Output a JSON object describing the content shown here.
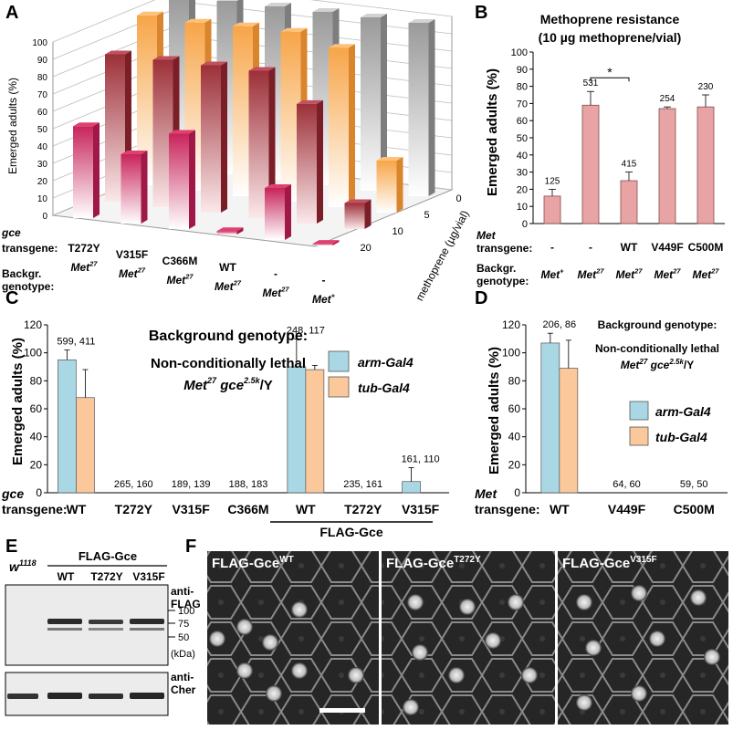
{
  "panel_letters": [
    "A",
    "B",
    "C",
    "D",
    "E",
    "F"
  ],
  "panel_a": {
    "ylabel": "Emerged adults (%)",
    "depth_label": "methoprene (µg/vial)",
    "row1_header": "gce transgene:",
    "row2_header": "Backgr. genotype:",
    "gce_transgene": [
      "T272Y",
      "V315F",
      "C366M",
      "WT",
      "-",
      "-"
    ],
    "background": [
      "Met27",
      "Met27",
      "Met27",
      "Met27",
      "Met27",
      "Met+"
    ]
  },
  "panel_b": {
    "title": "Methoprene resistance",
    "subtitle": "(10 µg methoprene/vial)",
    "row1_header": "Met transgene:",
    "row2_header": "Backgr. genotype:",
    "star": "*"
  },
  "panel_c": {
    "box_title": "Background genotype:",
    "box_line1": "Non-conditionally lethal",
    "box_line2": "Met27 gce2.5k/Y",
    "row_header": "gce transgene:",
    "group_label": "FLAG-Gce"
  },
  "panel_d": {
    "box_title": "Background genotype:",
    "box_line1": "Non-conditionally lethal",
    "box_line2": "Met27 gce2.5k/Y",
    "row_header": "Met transgene:"
  },
  "panel_e": {
    "control_lane": "w1118",
    "group_label": "FLAG-Gce",
    "lanes": [
      "WT",
      "T272Y",
      "V315F"
    ],
    "blot1_label": "anti-FLAG",
    "blot2_label": "anti-Cher",
    "markers": [
      "100",
      "75",
      "50"
    ],
    "unit": "(kDa)"
  },
  "panel_f": {
    "images": [
      "FLAG-GceWT",
      "FLAG-GceT272Y",
      "FLAG-GceV315F"
    ]
  },
  "chart_data": [
    {
      "panel": "A",
      "type": "bar",
      "ylabel": "Emerged adults (%)",
      "ylim": [
        0,
        100
      ],
      "yticks": [
        0,
        10,
        20,
        30,
        40,
        50,
        60,
        70,
        80,
        90,
        100
      ],
      "depth_label": "methoprene (µg/vial)",
      "depth_values": [
        0,
        5,
        10,
        20
      ],
      "categories": [
        "T272Y Met27",
        "V315F Met27",
        "C366M Met27",
        "WT Met27",
        "- Met27",
        "- Met+"
      ],
      "series": [
        {
          "name": "0",
          "values": [
            100,
            100,
            100,
            100,
            100,
            100
          ]
        },
        {
          "name": "5",
          "values": [
            98,
            97,
            98,
            98,
            92,
            30
          ]
        },
        {
          "name": "10",
          "values": [
            85,
            85,
            85,
            85,
            69,
            15
          ]
        },
        {
          "name": "20",
          "values": [
            53,
            40,
            55,
            2,
            30,
            1
          ]
        }
      ]
    },
    {
      "panel": "B",
      "type": "bar",
      "title": "Methoprene resistance",
      "subtitle": "(10 µg methoprene/vial)",
      "ylabel": "Emerged adults (%)",
      "ylim": [
        0,
        100
      ],
      "yticks": [
        0,
        10,
        20,
        30,
        40,
        50,
        60,
        70,
        80,
        90,
        100
      ],
      "categories": [
        "-",
        "-",
        "WT",
        "V449F",
        "C500M"
      ],
      "background": [
        "Met+",
        "Met27",
        "Met27",
        "Met27",
        "Met27"
      ],
      "values": [
        16,
        69,
        25,
        67,
        68
      ],
      "errors": [
        4,
        8,
        5,
        1,
        7
      ],
      "n_labels": [
        "125",
        "531",
        "415",
        "254",
        "230"
      ],
      "significance": "*"
    },
    {
      "panel": "C",
      "type": "bar",
      "ylabel": "Emerged adults (%)",
      "ylim": [
        0,
        120
      ],
      "yticks": [
        0,
        20,
        40,
        60,
        80,
        100,
        120
      ],
      "categories": [
        "WT",
        "T272Y",
        "V315F",
        "C366M",
        "WT",
        "T272Y",
        "V315F"
      ],
      "series": [
        {
          "name": "arm-Gal4",
          "values": [
            95,
            0,
            0,
            0,
            90,
            0,
            8
          ],
          "errors": [
            7,
            0,
            0,
            0,
            20,
            0,
            10
          ]
        },
        {
          "name": "tub-Gal4",
          "values": [
            68,
            0,
            0,
            0,
            88,
            0,
            0
          ],
          "errors": [
            20,
            0,
            0,
            0,
            3,
            0,
            0
          ]
        }
      ],
      "n_labels": [
        "599, 411",
        "265, 160",
        "189, 139",
        "188, 183",
        "248, 117",
        "235, 161",
        "161, 110"
      ]
    },
    {
      "panel": "D",
      "type": "bar",
      "ylabel": "Emerged adults (%)",
      "ylim": [
        0,
        120
      ],
      "yticks": [
        0,
        20,
        40,
        60,
        80,
        100,
        120
      ],
      "categories": [
        "WT",
        "V449F",
        "C500M"
      ],
      "series": [
        {
          "name": "arm-Gal4",
          "values": [
            107,
            0,
            0
          ],
          "errors": [
            7,
            0,
            0
          ]
        },
        {
          "name": "tub-Gal4",
          "values": [
            89,
            0,
            0
          ],
          "errors": [
            20,
            0,
            0
          ]
        }
      ],
      "n_labels": [
        "206, 86",
        "64, 60",
        "59, 50"
      ]
    }
  ]
}
